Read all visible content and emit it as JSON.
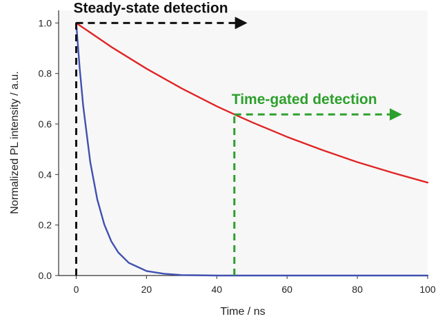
{
  "chart_data": {
    "type": "line",
    "title": "",
    "xlabel": "Time / ns",
    "ylabel": "Normalized PL intensity / a.u.",
    "xlim": [
      -5,
      100
    ],
    "ylim": [
      0,
      1.05
    ],
    "xticks": [
      0,
      20,
      40,
      60,
      80,
      100
    ],
    "yticks": [
      0.0,
      0.2,
      0.4,
      0.6,
      0.8,
      1.0
    ],
    "xtick_labels": [
      "0",
      "20",
      "40",
      "60",
      "80",
      "100"
    ],
    "ytick_labels": [
      "0.0",
      "0.2",
      "0.4",
      "0.6",
      "0.8",
      "1.0"
    ],
    "grid": false,
    "background": "#f7f7f7",
    "series": [
      {
        "color": "#e02424",
        "x": [
          0,
          10,
          20,
          30,
          40,
          45,
          50,
          60,
          70,
          80,
          90,
          100
        ],
        "y": [
          1.0,
          0.905,
          0.819,
          0.741,
          0.67,
          0.638,
          0.607,
          0.549,
          0.497,
          0.449,
          0.407,
          0.368
        ]
      },
      {
        "color": "#4050b0",
        "x": [
          0,
          1,
          2,
          4,
          6,
          8,
          10,
          12,
          15,
          20,
          25,
          30,
          35,
          40,
          100
        ],
        "y": [
          1.0,
          0.819,
          0.67,
          0.449,
          0.301,
          0.202,
          0.135,
          0.091,
          0.05,
          0.018,
          0.007,
          0.002,
          0.001,
          0.0,
          0.0
        ]
      }
    ],
    "annotations": [
      {
        "text": "Steady-state detection",
        "color": "#111111",
        "vline_x": 0,
        "arrow_from_x": 0,
        "arrow_to_x": 48,
        "arrow_y": 1.0
      },
      {
        "text": "Time-gated detection",
        "color": "#2ca02c",
        "vline_x": 45,
        "arrow_from_x": 45,
        "arrow_to_x": 92,
        "arrow_y": 0.638
      }
    ]
  }
}
